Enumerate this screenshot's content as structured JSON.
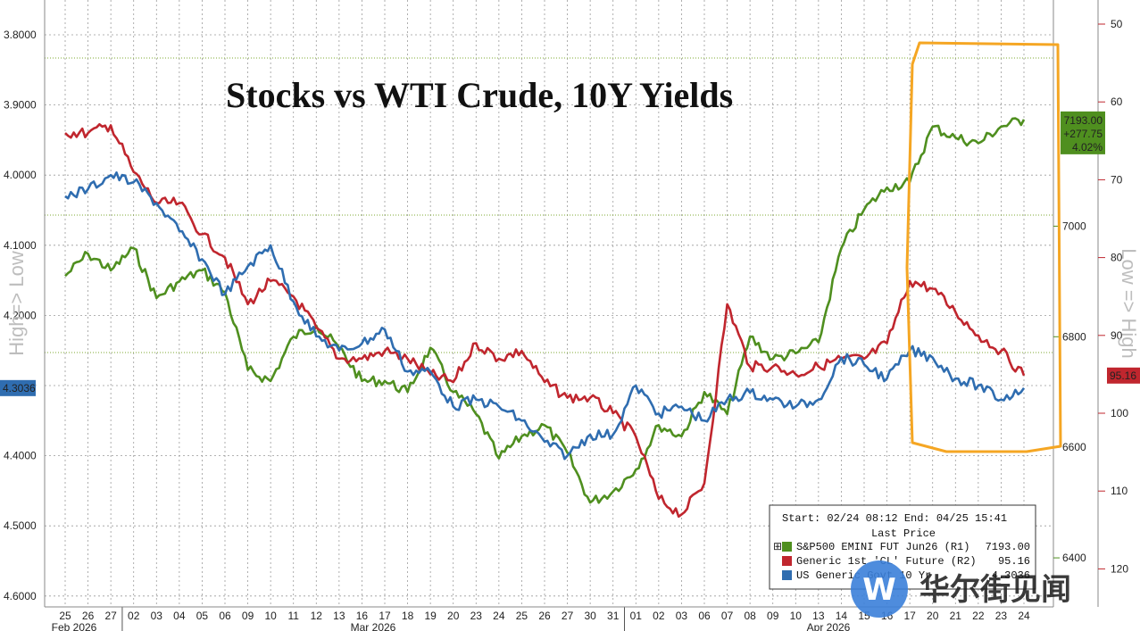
{
  "chart_data": {
    "type": "line",
    "title": "Stocks vs WTI Crude, 10Y Yields",
    "left_axis_label": "High=> Low",
    "right_axis_label": "Low => High",
    "grid": true,
    "legend_position": "bottom-right",
    "x_labels": [
      "25",
      "26",
      "27",
      "02",
      "03",
      "04",
      "05",
      "06",
      "09",
      "10",
      "11",
      "12",
      "13",
      "16",
      "17",
      "18",
      "19",
      "20",
      "23",
      "24",
      "25",
      "26",
      "27",
      "30",
      "31",
      "01",
      "02",
      "03",
      "06",
      "07",
      "08",
      "09",
      "10",
      "13",
      "14",
      "15",
      "16",
      "17",
      "20",
      "21",
      "22",
      "23",
      "24"
    ],
    "month_labels": [
      "Feb 2026",
      "Mar 2026",
      "Apr 2026"
    ],
    "axes": {
      "yield_axis": {
        "side": "left",
        "inverted": true,
        "range": [
          3.75,
          4.62
        ],
        "ticks": [
          "3.8000",
          "3.9000",
          "4.0000",
          "4.1000",
          "4.2000",
          "4.3000",
          "4.4000",
          "4.5000",
          "4.6000"
        ],
        "last_value_label": "4.3036"
      },
      "crude_axis": {
        "side": "right-outer",
        "inverted": true,
        "range": [
          49,
          116
        ],
        "ticks": [
          "50",
          "60",
          "70",
          "80",
          "90",
          "100",
          "110",
          "120"
        ],
        "last_value_label": "95.16"
      },
      "spx_axis": {
        "side": "right-inner",
        "inverted": false,
        "range": [
          6320,
          7260
        ],
        "ticks": [
          "6400",
          "6600",
          "6800",
          "7000"
        ],
        "last_value_labels": [
          "7193.00",
          "+277.75",
          "4.02%"
        ]
      }
    },
    "series": [
      {
        "name": "S&P500 EMINI FUT Jun26 (R1)",
        "axis": "spx_axis",
        "color": "#4f8f1f",
        "last": "7193.00",
        "values": [
          6910,
          6950,
          6920,
          6960,
          6870,
          6900,
          6920,
          6880,
          6740,
          6720,
          6800,
          6820,
          6780,
          6720,
          6720,
          6700,
          6780,
          6700,
          6660,
          6580,
          6620,
          6640,
          6590,
          6500,
          6520,
          6560,
          6640,
          6620,
          6700,
          6660,
          6800,
          6760,
          6770,
          6790,
          6960,
          7030,
          7070,
          7080,
          7180,
          7160,
          7150,
          7180,
          7193
        ]
      },
      {
        "name": "Generic 1st 'CL' Future (R2)",
        "axis": "crude_axis",
        "color": "#c0262e",
        "last": "95.16",
        "values": [
          64,
          64,
          63,
          69,
          73,
          73,
          77,
          80,
          86,
          83,
          85,
          89,
          93,
          93,
          92,
          93,
          95,
          96,
          91,
          93,
          92,
          96,
          98,
          98,
          100,
          103,
          111,
          113,
          109,
          86,
          94,
          94,
          95,
          94,
          93,
          93,
          91,
          83,
          84,
          87,
          90,
          92,
          95.16
        ]
      },
      {
        "name": "US Generic Govt 10 Yr",
        "axis": "yield_axis",
        "color": "#2f6db0",
        "last": "4.3036",
        "values": [
          4.03,
          4.02,
          4.0,
          4.01,
          4.04,
          4.08,
          4.12,
          4.17,
          4.13,
          4.1,
          4.18,
          4.23,
          4.25,
          4.24,
          4.22,
          4.28,
          4.28,
          4.33,
          4.32,
          4.33,
          4.35,
          4.38,
          4.4,
          4.37,
          4.37,
          4.3,
          4.34,
          4.33,
          4.35,
          4.32,
          4.31,
          4.32,
          4.33,
          4.32,
          4.26,
          4.27,
          4.29,
          4.25,
          4.26,
          4.29,
          4.3,
          4.32,
          4.3036
        ]
      }
    ],
    "legend": {
      "line1": "Start: 02/24 08:12 End: 04/25 15:41",
      "line2": "Last Price",
      "entries": [
        {
          "label": "S&P500 EMINI FUT Jun26 (R1)",
          "value": "7193.00",
          "color": "#4f8f1f"
        },
        {
          "label": "Generic 1st 'CL' Future (R2)",
          "value": "95.16",
          "color": "#c0262e"
        },
        {
          "label": "US Generic Govt 10 Yr",
          "value": "4.3036",
          "color": "#2f6db0"
        }
      ]
    },
    "annotation": "orange highlight box around the last week of April",
    "watermark": "华尔街见闻"
  },
  "colors": {
    "spx": "#4f8f1f",
    "crude": "#c0262e",
    "yield": "#2f6db0",
    "highlight": "#f5a623",
    "grid": "#9a9a9a",
    "dotted_ref": "#7ea832"
  }
}
